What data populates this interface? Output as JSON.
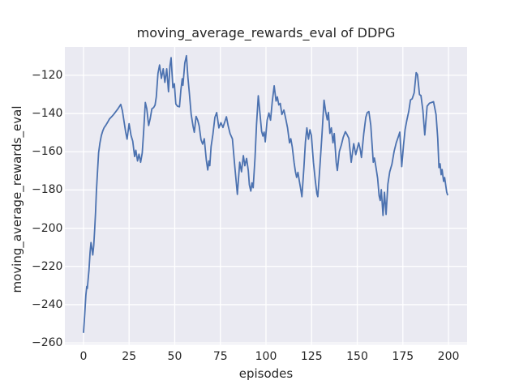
{
  "chart_data": {
    "type": "line",
    "title": "moving_average_rewards_eval of DDPG",
    "xlabel": "episodes",
    "ylabel": "moving_average_rewards_eval",
    "xlim": [
      -10.2,
      210.2
    ],
    "ylim": [
      -260.8,
      -105.2
    ],
    "x_ticks": [
      0,
      25,
      50,
      75,
      100,
      125,
      150,
      175,
      200
    ],
    "x_tick_labels": [
      "0",
      "25",
      "50",
      "75",
      "100",
      "125",
      "150",
      "175",
      "200"
    ],
    "y_ticks": [
      -260,
      -240,
      -220,
      -200,
      -180,
      -160,
      -140,
      -120
    ],
    "y_tick_labels": [
      "−260",
      "−240",
      "−220",
      "−200",
      "−180",
      "−160",
      "−140",
      "−120"
    ],
    "grid": true,
    "legend_position": "none",
    "style": {
      "figure_background": "#ffffff",
      "axes_background": "#eaeaf2",
      "grid_color": "#ffffff",
      "line_color": "#4c72b0",
      "text_color": "#262626"
    },
    "series": [
      {
        "name": "moving_average_rewards_eval",
        "points": [
          [
            0.0,
            -254.5
          ],
          [
            0.7,
            -245.0
          ],
          [
            1.3,
            -235.0
          ],
          [
            1.8,
            -230.5
          ],
          [
            2.1,
            -231.5
          ],
          [
            2.3,
            -229.5
          ],
          [
            3.0,
            -222.0
          ],
          [
            3.6,
            -212.5
          ],
          [
            4.1,
            -207.5
          ],
          [
            4.6,
            -210.5
          ],
          [
            5.1,
            -214.0
          ],
          [
            5.6,
            -209.0
          ],
          [
            6.1,
            -201.0
          ],
          [
            6.6,
            -192.0
          ],
          [
            7.1,
            -180.5
          ],
          [
            7.7,
            -170.0
          ],
          [
            8.3,
            -160.5
          ],
          [
            9.0,
            -155.5
          ],
          [
            9.8,
            -151.5
          ],
          [
            10.6,
            -149.0
          ],
          [
            11.3,
            -147.4
          ],
          [
            12.2,
            -146.2
          ],
          [
            13.1,
            -144.8
          ],
          [
            14.2,
            -142.9
          ],
          [
            15.3,
            -141.8
          ],
          [
            16.4,
            -140.6
          ],
          [
            17.5,
            -139.3
          ],
          [
            18.6,
            -137.9
          ],
          [
            19.5,
            -136.6
          ],
          [
            20.4,
            -135.2
          ],
          [
            21.3,
            -138.5
          ],
          [
            22.2,
            -144.0
          ],
          [
            23.1,
            -149.5
          ],
          [
            23.9,
            -153.4
          ],
          [
            25.0,
            -145.3
          ],
          [
            26.0,
            -151.3
          ],
          [
            27.0,
            -154.5
          ],
          [
            28.0,
            -162.5
          ],
          [
            28.7,
            -159.2
          ],
          [
            29.6,
            -164.8
          ],
          [
            30.4,
            -161.3
          ],
          [
            31.3,
            -165.5
          ],
          [
            32.2,
            -160.6
          ],
          [
            33.0,
            -149.0
          ],
          [
            33.9,
            -134.2
          ],
          [
            34.7,
            -137.5
          ],
          [
            35.7,
            -146.3
          ],
          [
            36.6,
            -142.5
          ],
          [
            37.5,
            -137.5
          ],
          [
            38.4,
            -136.9
          ],
          [
            39.2,
            -135.6
          ],
          [
            39.9,
            -131.4
          ],
          [
            40.8,
            -119.0
          ],
          [
            41.7,
            -114.6
          ],
          [
            42.7,
            -121.6
          ],
          [
            43.7,
            -116.6
          ],
          [
            44.6,
            -123.7
          ],
          [
            45.6,
            -116.6
          ],
          [
            46.6,
            -128.6
          ],
          [
            47.4,
            -115.0
          ],
          [
            48.0,
            -110.8
          ],
          [
            49.0,
            -126.5
          ],
          [
            49.8,
            -124.4
          ],
          [
            50.6,
            -135.0
          ],
          [
            51.5,
            -136.2
          ],
          [
            52.6,
            -136.5
          ],
          [
            53.4,
            -127.5
          ],
          [
            54.1,
            -121.8
          ],
          [
            54.5,
            -125.2
          ],
          [
            55.5,
            -113.5
          ],
          [
            56.4,
            -109.8
          ],
          [
            57.2,
            -121.0
          ],
          [
            58.0,
            -129.3
          ],
          [
            59.0,
            -140.3
          ],
          [
            60.0,
            -146.5
          ],
          [
            60.7,
            -149.8
          ],
          [
            61.7,
            -141.5
          ],
          [
            62.6,
            -143.5
          ],
          [
            63.4,
            -146.5
          ],
          [
            64.4,
            -153.8
          ],
          [
            65.3,
            -156.0
          ],
          [
            66.2,
            -153.2
          ],
          [
            67.3,
            -164.3
          ],
          [
            68.1,
            -169.5
          ],
          [
            68.7,
            -164.8
          ],
          [
            69.2,
            -167.3
          ],
          [
            69.9,
            -157.3
          ],
          [
            70.9,
            -151.0
          ],
          [
            72.0,
            -142.0
          ],
          [
            73.0,
            -139.5
          ],
          [
            74.2,
            -147.5
          ],
          [
            75.3,
            -144.8
          ],
          [
            76.4,
            -147.3
          ],
          [
            77.4,
            -144.5
          ],
          [
            78.3,
            -141.7
          ],
          [
            79.3,
            -146.5
          ],
          [
            80.3,
            -150.5
          ],
          [
            81.6,
            -153.3
          ],
          [
            83.0,
            -168.5
          ],
          [
            84.3,
            -182.3
          ],
          [
            85.6,
            -165.5
          ],
          [
            86.6,
            -170.5
          ],
          [
            87.6,
            -162.0
          ],
          [
            88.4,
            -167.3
          ],
          [
            89.4,
            -163.5
          ],
          [
            90.3,
            -170.0
          ],
          [
            90.9,
            -177.3
          ],
          [
            91.7,
            -180.6
          ],
          [
            92.3,
            -176.3
          ],
          [
            93.0,
            -178.8
          ],
          [
            94.0,
            -163.0
          ],
          [
            94.8,
            -146.0
          ],
          [
            95.8,
            -130.7
          ],
          [
            96.8,
            -141.0
          ],
          [
            97.6,
            -149.3
          ],
          [
            98.3,
            -151.8
          ],
          [
            99.0,
            -149.7
          ],
          [
            99.6,
            -154.8
          ],
          [
            100.6,
            -143.5
          ],
          [
            101.6,
            -139.7
          ],
          [
            102.5,
            -143.5
          ],
          [
            103.4,
            -134.0
          ],
          [
            104.5,
            -125.5
          ],
          [
            105.5,
            -133.5
          ],
          [
            106.2,
            -131.3
          ],
          [
            107.0,
            -135.5
          ],
          [
            107.8,
            -134.7
          ],
          [
            108.7,
            -140.5
          ],
          [
            109.8,
            -138.2
          ],
          [
            110.9,
            -143.0
          ],
          [
            111.8,
            -147.5
          ],
          [
            112.9,
            -155.3
          ],
          [
            113.6,
            -153.2
          ],
          [
            114.4,
            -157.5
          ],
          [
            115.4,
            -165.8
          ],
          [
            116.1,
            -170.2
          ],
          [
            116.8,
            -173.4
          ],
          [
            117.5,
            -170.8
          ],
          [
            118.3,
            -175.5
          ],
          [
            119.0,
            -179.5
          ],
          [
            119.7,
            -183.5
          ],
          [
            120.8,
            -168.0
          ],
          [
            121.6,
            -155.0
          ],
          [
            122.4,
            -147.5
          ],
          [
            123.3,
            -153.4
          ],
          [
            124.1,
            -148.5
          ],
          [
            124.9,
            -151.5
          ],
          [
            126.0,
            -165.5
          ],
          [
            127.0,
            -175.0
          ],
          [
            127.9,
            -182.0
          ],
          [
            128.4,
            -183.5
          ],
          [
            129.6,
            -167.0
          ],
          [
            130.6,
            -152.0
          ],
          [
            131.8,
            -133.0
          ],
          [
            132.7,
            -139.0
          ],
          [
            133.6,
            -143.3
          ],
          [
            134.2,
            -139.4
          ],
          [
            135.0,
            -150.4
          ],
          [
            135.8,
            -147.5
          ],
          [
            136.7,
            -155.3
          ],
          [
            137.4,
            -150.5
          ],
          [
            138.5,
            -165.5
          ],
          [
            139.1,
            -169.8
          ],
          [
            140.2,
            -159.8
          ],
          [
            141.3,
            -156.5
          ],
          [
            142.3,
            -152.5
          ],
          [
            143.5,
            -149.5
          ],
          [
            144.4,
            -151.0
          ],
          [
            145.4,
            -153.0
          ],
          [
            146.7,
            -165.5
          ],
          [
            148.1,
            -155.8
          ],
          [
            149.2,
            -161.5
          ],
          [
            150.8,
            -155.3
          ],
          [
            151.6,
            -158.5
          ],
          [
            152.3,
            -163.0
          ],
          [
            153.6,
            -150.4
          ],
          [
            154.7,
            -142.0
          ],
          [
            155.5,
            -139.5
          ],
          [
            156.4,
            -139.0
          ],
          [
            157.4,
            -146.0
          ],
          [
            158.8,
            -165.5
          ],
          [
            159.4,
            -163.3
          ],
          [
            160.2,
            -167.8
          ],
          [
            161.2,
            -174.0
          ],
          [
            162.0,
            -183.0
          ],
          [
            162.6,
            -185.5
          ],
          [
            163.2,
            -179.8
          ],
          [
            164.1,
            -193.3
          ],
          [
            164.9,
            -181.2
          ],
          [
            165.8,
            -192.8
          ],
          [
            166.8,
            -177.0
          ],
          [
            167.8,
            -170.5
          ],
          [
            169.0,
            -166.5
          ],
          [
            170.2,
            -159.8
          ],
          [
            171.4,
            -155.2
          ],
          [
            172.4,
            -152.5
          ],
          [
            173.3,
            -149.7
          ],
          [
            174.4,
            -167.8
          ],
          [
            175.3,
            -157.0
          ],
          [
            176.2,
            -148.5
          ],
          [
            177.2,
            -143.5
          ],
          [
            178.2,
            -139.0
          ],
          [
            179.2,
            -132.9
          ],
          [
            180.1,
            -132.3
          ],
          [
            181.2,
            -129.2
          ],
          [
            182.3,
            -118.6
          ],
          [
            183.0,
            -119.6
          ],
          [
            184.1,
            -130.1
          ],
          [
            184.9,
            -130.6
          ],
          [
            186.0,
            -138.5
          ],
          [
            187.0,
            -151.2
          ],
          [
            188.3,
            -136.2
          ],
          [
            189.6,
            -134.6
          ],
          [
            190.8,
            -134.2
          ],
          [
            191.8,
            -133.8
          ],
          [
            193.2,
            -140.5
          ],
          [
            194.1,
            -153.0
          ],
          [
            194.8,
            -168.3
          ],
          [
            195.4,
            -166.3
          ],
          [
            196.0,
            -172.0
          ],
          [
            196.5,
            -169.3
          ],
          [
            197.3,
            -175.5
          ],
          [
            197.9,
            -173.5
          ],
          [
            199.0,
            -181.0
          ],
          [
            199.5,
            -182.5
          ]
        ]
      }
    ]
  }
}
